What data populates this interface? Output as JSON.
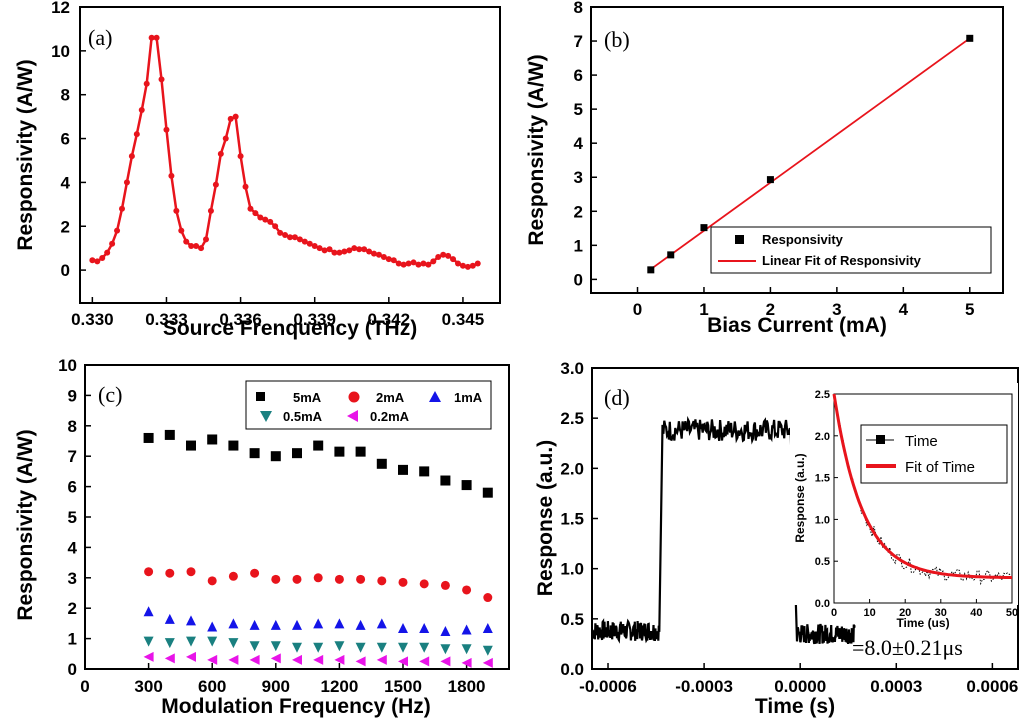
{
  "chart_data": [
    {
      "id": "a",
      "type": "line",
      "panel_label": "(a)",
      "xlabel": "Source Frenquency (THz)",
      "ylabel": "Responsivity (A/W)",
      "xlim": [
        0.3295,
        0.3465
      ],
      "ylim": [
        -1.5,
        12
      ],
      "xticks": [
        0.33,
        0.333,
        0.336,
        0.339,
        0.342,
        0.345
      ],
      "xtick_labels": [
        "0.330",
        "0.333",
        "0.336",
        "0.339",
        "0.342",
        "0.345"
      ],
      "yticks": [
        0,
        2,
        4,
        6,
        8,
        10,
        12
      ],
      "color": "#e8141c",
      "x": [
        0.33,
        0.3302,
        0.3304,
        0.3306,
        0.3308,
        0.331,
        0.3312,
        0.3314,
        0.3316,
        0.3318,
        0.332,
        0.3322,
        0.3324,
        0.3326,
        0.3328,
        0.333,
        0.3332,
        0.3334,
        0.3336,
        0.3338,
        0.334,
        0.3342,
        0.3344,
        0.3346,
        0.3348,
        0.335,
        0.3352,
        0.3354,
        0.3356,
        0.3358,
        0.336,
        0.3362,
        0.3364,
        0.3366,
        0.3368,
        0.337,
        0.3372,
        0.3374,
        0.3376,
        0.3378,
        0.338,
        0.3382,
        0.3384,
        0.3386,
        0.3388,
        0.339,
        0.3392,
        0.3394,
        0.3396,
        0.3398,
        0.34,
        0.3402,
        0.3404,
        0.3406,
        0.3408,
        0.341,
        0.3412,
        0.3414,
        0.3416,
        0.3418,
        0.342,
        0.3422,
        0.3424,
        0.3426,
        0.3428,
        0.343,
        0.3432,
        0.3434,
        0.3436,
        0.3438,
        0.344,
        0.3442,
        0.3444,
        0.3446,
        0.3448,
        0.345,
        0.3452,
        0.3454,
        0.3456
      ],
      "y": [
        0.45,
        0.4,
        0.55,
        0.8,
        1.2,
        1.8,
        2.8,
        4.0,
        5.2,
        6.2,
        7.3,
        8.5,
        10.6,
        10.6,
        8.7,
        6.4,
        4.3,
        2.7,
        1.8,
        1.3,
        1.1,
        1.1,
        1.0,
        1.4,
        2.7,
        3.9,
        5.3,
        6.0,
        6.9,
        7.0,
        5.2,
        3.8,
        2.8,
        2.6,
        2.4,
        2.3,
        2.2,
        2.0,
        1.7,
        1.6,
        1.5,
        1.5,
        1.4,
        1.3,
        1.2,
        1.1,
        1.0,
        0.9,
        0.95,
        0.8,
        0.8,
        0.85,
        0.9,
        1.0,
        0.95,
        0.95,
        0.85,
        0.75,
        0.7,
        0.6,
        0.5,
        0.45,
        0.3,
        0.25,
        0.3,
        0.35,
        0.25,
        0.3,
        0.25,
        0.4,
        0.6,
        0.7,
        0.65,
        0.5,
        0.3,
        0.2,
        0.15,
        0.2,
        0.3
      ]
    },
    {
      "id": "b",
      "type": "scatter",
      "panel_label": "(b)",
      "xlabel": "Bias Current (mA)",
      "ylabel": "Responsivity (A/W)",
      "xlim": [
        -0.7,
        5.5
      ],
      "ylim": [
        -0.4,
        8
      ],
      "xticks": [
        0,
        1,
        2,
        3,
        4,
        5
      ],
      "yticks": [
        0,
        1,
        2,
        3,
        4,
        5,
        6,
        7,
        8
      ],
      "series": [
        {
          "name": "Responsivity",
          "marker": "square",
          "color": "#000000",
          "x": [
            0.2,
            0.5,
            1,
            2,
            5
          ],
          "y": [
            0.28,
            0.72,
            1.52,
            2.93,
            7.08
          ]
        },
        {
          "name": "Linear Fit of Responsivity",
          "marker": "line",
          "color": "#e8141c",
          "x": [
            0.2,
            5
          ],
          "y": [
            0.3,
            7.08
          ]
        }
      ],
      "legend_position": "bottom-right"
    },
    {
      "id": "c",
      "type": "scatter",
      "panel_label": "(c)",
      "xlabel": "Modulation Frequency (Hz)",
      "ylabel": "Responsivity (A/W)",
      "xlim": [
        0,
        2000
      ],
      "ylim": [
        0,
        10
      ],
      "xticks": [
        0,
        300,
        600,
        900,
        1200,
        1500,
        1800
      ],
      "yticks": [
        0,
        1,
        2,
        3,
        4,
        5,
        6,
        7,
        8,
        9,
        10
      ],
      "x": [
        300,
        400,
        500,
        600,
        700,
        800,
        900,
        1000,
        1100,
        1200,
        1300,
        1400,
        1500,
        1600,
        1700,
        1800,
        1900
      ],
      "series": [
        {
          "name": "5mA",
          "marker": "square",
          "color": "#000000",
          "y": [
            7.6,
            7.7,
            7.35,
            7.55,
            7.35,
            7.1,
            7.0,
            7.1,
            7.35,
            7.15,
            7.15,
            6.75,
            6.55,
            6.5,
            6.2,
            6.05,
            5.8
          ]
        },
        {
          "name": "2mA",
          "marker": "circle",
          "color": "#e8141c",
          "y": [
            3.2,
            3.15,
            3.2,
            2.9,
            3.05,
            3.15,
            2.95,
            2.95,
            3.0,
            2.95,
            2.95,
            2.9,
            2.85,
            2.8,
            2.75,
            2.6,
            2.35
          ]
        },
        {
          "name": "1mA",
          "marker": "triangle-up",
          "color": "#1414e8",
          "y": [
            1.9,
            1.65,
            1.6,
            1.4,
            1.5,
            1.45,
            1.45,
            1.45,
            1.5,
            1.5,
            1.45,
            1.5,
            1.35,
            1.35,
            1.25,
            1.3,
            1.35
          ]
        },
        {
          "name": "0.5mA",
          "marker": "triangle-down",
          "color": "#1a8080",
          "y": [
            0.9,
            0.85,
            0.9,
            0.9,
            0.85,
            0.75,
            0.75,
            0.7,
            0.7,
            0.75,
            0.7,
            0.7,
            0.7,
            0.7,
            0.65,
            0.65,
            0.6
          ]
        },
        {
          "name": "0.2mA",
          "marker": "triangle-left",
          "color": "#e814e8",
          "y": [
            0.4,
            0.35,
            0.4,
            0.3,
            0.3,
            0.3,
            0.35,
            0.3,
            0.3,
            0.3,
            0.25,
            0.3,
            0.25,
            0.25,
            0.25,
            0.2,
            0.2
          ]
        }
      ],
      "legend_position": "top-right"
    },
    {
      "id": "d",
      "type": "line",
      "panel_label": "(d)",
      "xlabel": "Time (s)",
      "ylabel": "Response (a.u.)",
      "xlim": [
        -0.00065,
        0.00068
      ],
      "ylim": [
        0,
        3
      ],
      "xticks": [
        -0.0006,
        -0.0003,
        0,
        0.0003,
        0.0006
      ],
      "xtick_labels": [
        "-0.0006",
        "-0.0003",
        "0.0000",
        "0.0003",
        "0.0006"
      ],
      "yticks": [
        0,
        0.5,
        1.0,
        1.5,
        2.0,
        2.5,
        3.0
      ],
      "ytick_labels": [
        "0.0",
        "0.5",
        "1.0",
        "1.5",
        "2.0",
        "2.5",
        "3.0"
      ],
      "color": "#000000",
      "segments": [
        {
          "x": [
            -0.00065,
            -0.00044
          ],
          "level": 0.38
        },
        {
          "x": [
            -0.00043,
            -3e-05
          ],
          "level": 2.38
        },
        {
          "x": [
            -1e-05,
            0.00017
          ],
          "level": 0.35
        }
      ],
      "annotation": "=8.0±0.21μs",
      "inset": {
        "type": "scatter",
        "xlabel": "Time (us)",
        "ylabel": "Response (a.u.)",
        "xlim": [
          0,
          50
        ],
        "ylim": [
          0,
          2.5
        ],
        "xticks": [
          0,
          10,
          20,
          30,
          40,
          50
        ],
        "yticks": [
          0,
          0.5,
          1.0,
          1.5,
          2.0,
          2.5
        ],
        "ytick_labels": [
          "0.0",
          "0.5",
          "1.0",
          "1.5",
          "2.0",
          "2.5"
        ],
        "series": [
          {
            "name": "Time",
            "marker": "square",
            "color": "#000000"
          },
          {
            "name": "Fit of Time",
            "marker": "line",
            "color": "#e8141c"
          }
        ],
        "fit": {
          "y0": 0.3,
          "A": 2.2,
          "tau": 8.0
        }
      }
    }
  ]
}
